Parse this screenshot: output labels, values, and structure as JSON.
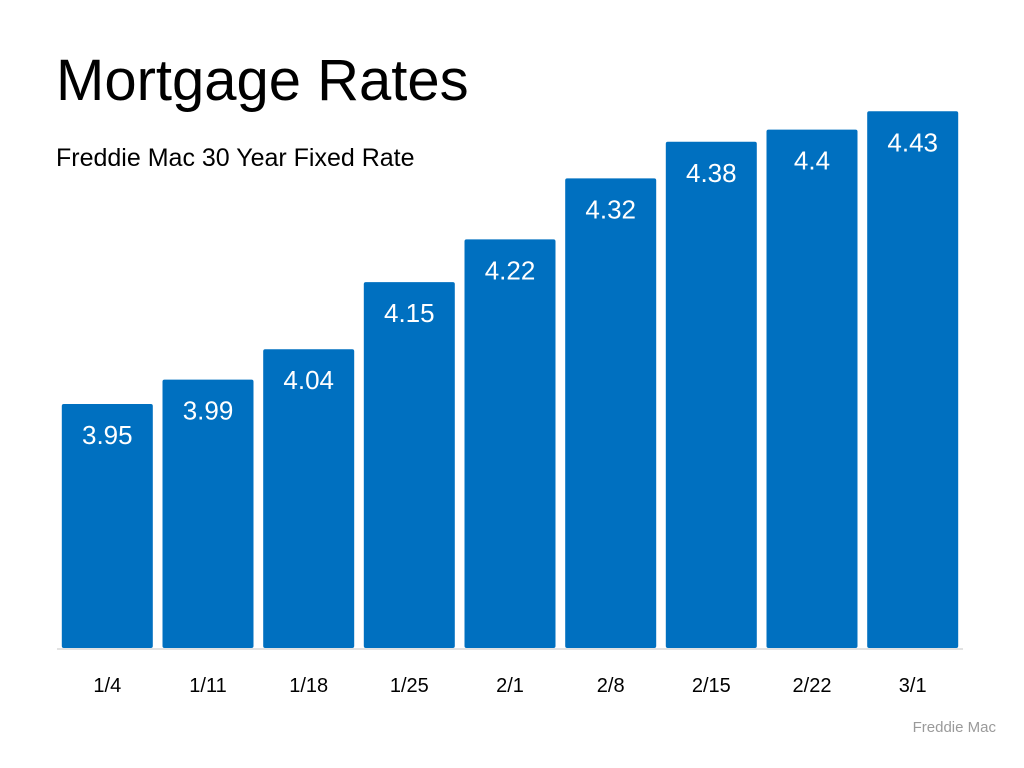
{
  "chart_data": {
    "type": "bar",
    "title": "Mortgage Rates",
    "subtitle": "Freddie Mac 30 Year Fixed Rate",
    "source": "Freddie Mac",
    "categories": [
      "1/4",
      "1/11",
      "1/18",
      "1/25",
      "2/1",
      "2/8",
      "2/15",
      "2/22",
      "3/1"
    ],
    "values": [
      3.95,
      3.99,
      4.04,
      4.15,
      4.22,
      4.32,
      4.38,
      4.4,
      4.43
    ],
    "value_labels": [
      "3.95",
      "3.99",
      "4.04",
      "4.15",
      "4.22",
      "4.32",
      "4.38",
      "4.4",
      "4.43"
    ],
    "xlabel": "",
    "ylabel": "",
    "ylim": [
      3.55,
      4.46
    ],
    "grid": false,
    "legend": "none",
    "bar_color": "#0070C0",
    "label_color": "#FFFFFF"
  }
}
